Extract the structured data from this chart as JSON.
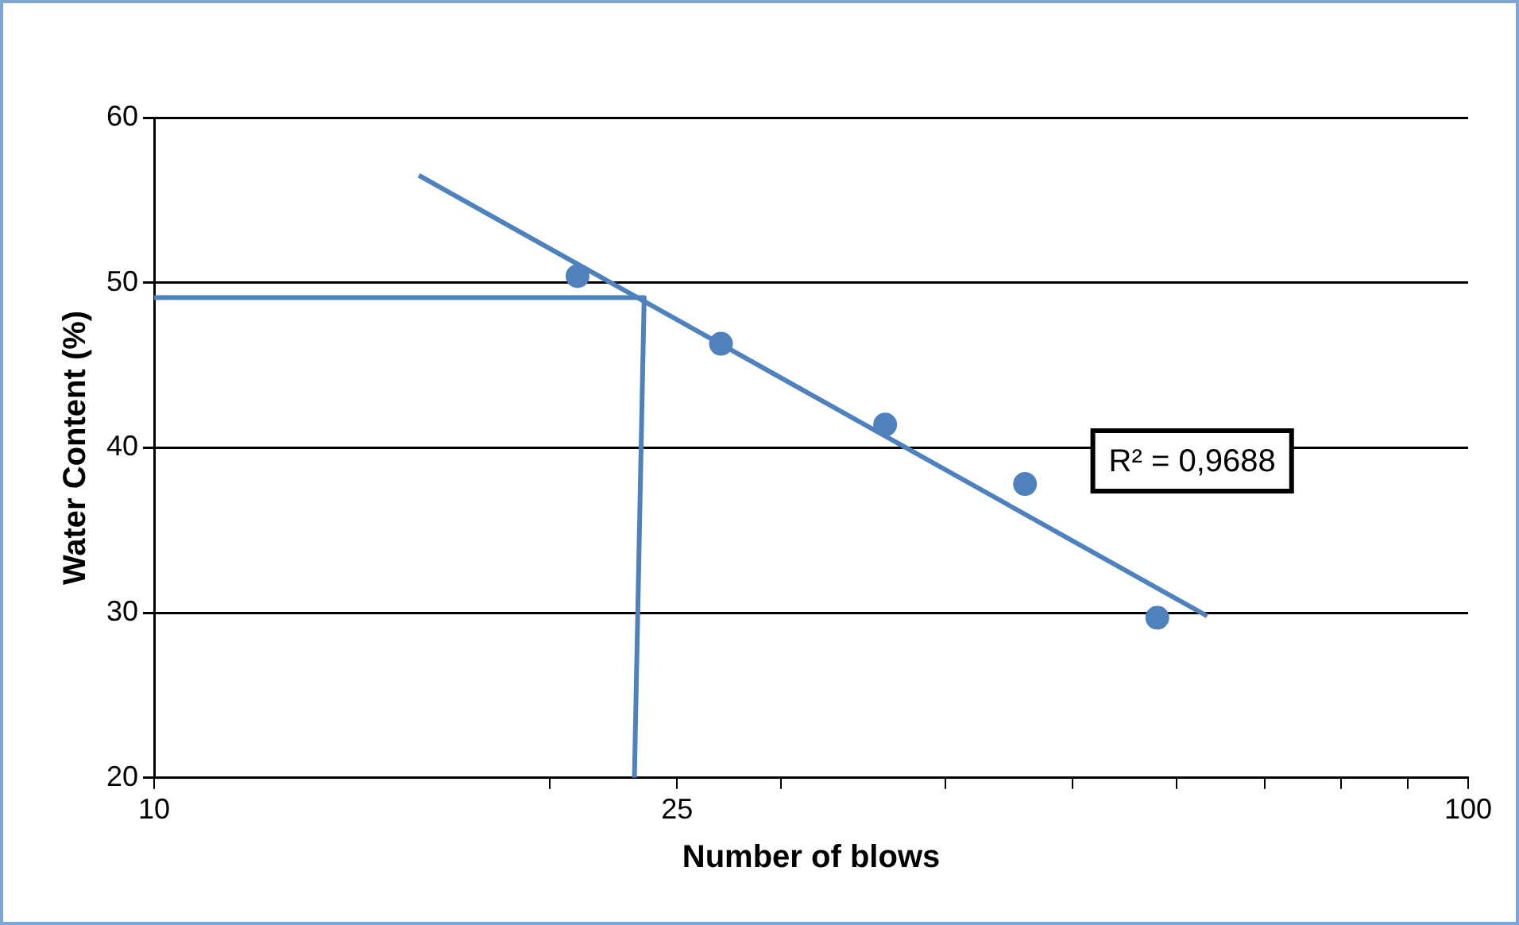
{
  "chart_data": {
    "type": "scatter",
    "xlabel": "Number of blows",
    "ylabel": "Water Content (%)",
    "log": "x",
    "xlim": [
      10,
      100
    ],
    "xticks": [
      10,
      {
        "value": 20,
        "label": null
      },
      25,
      {
        "value": 30,
        "label": null
      },
      {
        "value": 40,
        "label": null
      },
      {
        "value": 50,
        "label": null
      },
      {
        "value": 60,
        "label": null
      },
      {
        "value": 70,
        "label": null
      },
      {
        "value": 80,
        "label": null
      },
      {
        "value": 90,
        "label": null
      },
      100
    ],
    "ylim": [
      20,
      60
    ],
    "yticks": [
      20,
      30,
      40,
      50,
      60
    ],
    "grid": "y",
    "legend": false,
    "annotations": [
      "R² = 0,9688"
    ],
    "series": [
      {
        "color": "#4f81bd",
        "marker": "circle",
        "x": [
          21,
          27,
          36,
          46,
          58
        ],
        "values": [
          50.4,
          46.3,
          41.4,
          37.8,
          29.7
        ]
      },
      {
        "type": "line",
        "color": "#4f81bd",
        "marker": "none",
        "x": [
          15.9,
          63.3
        ],
        "values": [
          56.5,
          29.8
        ]
      },
      {
        "type": "line",
        "color": "#4f81bd",
        "marker": "none",
        "x": [
          10,
          23.6,
          23.2
        ],
        "values": [
          49.1,
          49.1,
          20
        ]
      }
    ]
  }
}
